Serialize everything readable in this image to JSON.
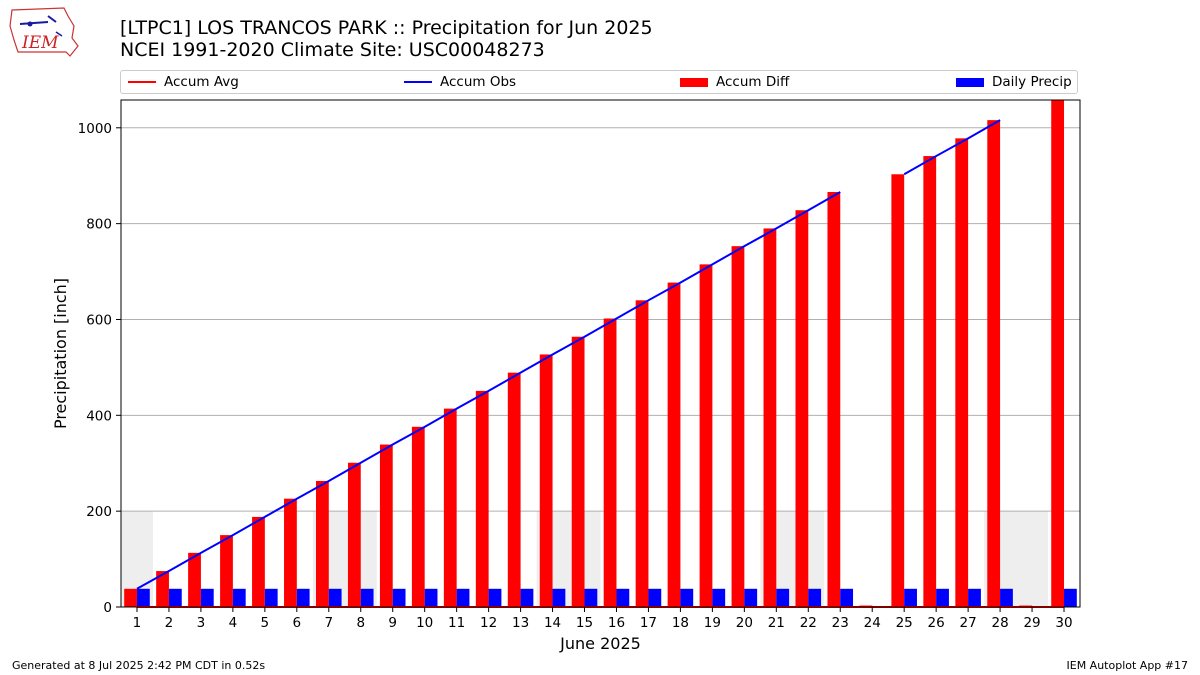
{
  "header": {
    "title_line1": "[LTPC1] LOS TRANCOS PARK :: Precipitation for Jun 2025",
    "title_line2": "NCEI 1991-2020 Climate Site: USC00048273",
    "logo_text": "IEM"
  },
  "footer": {
    "generated": "Generated at 8 Jul 2025 2:42 PM CDT in 0.52s",
    "app": "IEM Autoplot App #17"
  },
  "chart_data": {
    "type": "bar",
    "xlabel": "June 2025",
    "ylabel": "Precipitation [inch]",
    "ylim": [
      0,
      1058
    ],
    "yticks": [
      0,
      200,
      400,
      600,
      800,
      1000
    ],
    "grid": true,
    "legend_position": "top",
    "categories": [
      "1",
      "2",
      "3",
      "4",
      "5",
      "6",
      "7",
      "8",
      "9",
      "10",
      "11",
      "12",
      "13",
      "14",
      "15",
      "16",
      "17",
      "18",
      "19",
      "20",
      "21",
      "22",
      "23",
      "24",
      "25",
      "26",
      "27",
      "28",
      "29",
      "30"
    ],
    "series": [
      {
        "name": "Accum Avg",
        "type": "line",
        "color": "#ff0000",
        "values": [
          0,
          0,
          0,
          0,
          0,
          0,
          0,
          0,
          0,
          0,
          0,
          0,
          0,
          0,
          0,
          0,
          0,
          0,
          0,
          0,
          0,
          0,
          0,
          0,
          0,
          0,
          0,
          0,
          0,
          0
        ]
      },
      {
        "name": "Accum Obs",
        "type": "line",
        "color": "#0000ff",
        "values": [
          38,
          75,
          113,
          150,
          188,
          226,
          263,
          301,
          339,
          376,
          414,
          451,
          489,
          527,
          564,
          602,
          640,
          677,
          715,
          753,
          790,
          828,
          866,
          null,
          903,
          941,
          978,
          1016,
          null,
          null
        ]
      },
      {
        "name": "Accum Diff",
        "type": "bar",
        "color": "#ff0000",
        "values": [
          38,
          75,
          113,
          150,
          188,
          226,
          263,
          301,
          339,
          376,
          414,
          451,
          489,
          527,
          564,
          602,
          640,
          677,
          715,
          753,
          790,
          828,
          866,
          3,
          903,
          941,
          978,
          1016,
          3,
          1058
        ]
      },
      {
        "name": "Daily Precip",
        "type": "bar",
        "color": "#0000ff",
        "values": [
          38,
          38,
          38,
          38,
          38,
          38,
          38,
          38,
          38,
          38,
          38,
          38,
          38,
          38,
          38,
          38,
          38,
          38,
          38,
          38,
          38,
          38,
          38,
          0,
          38,
          38,
          38,
          38,
          0,
          38
        ]
      }
    ],
    "background_bands": [
      {
        "from": 1,
        "to": 1,
        "value": 200
      },
      {
        "from": 7,
        "to": 8,
        "value": 200
      },
      {
        "from": 14,
        "to": 15,
        "value": 200
      },
      {
        "from": 21,
        "to": 22,
        "value": 200
      },
      {
        "from": 28,
        "to": 29,
        "value": 200
      }
    ]
  }
}
